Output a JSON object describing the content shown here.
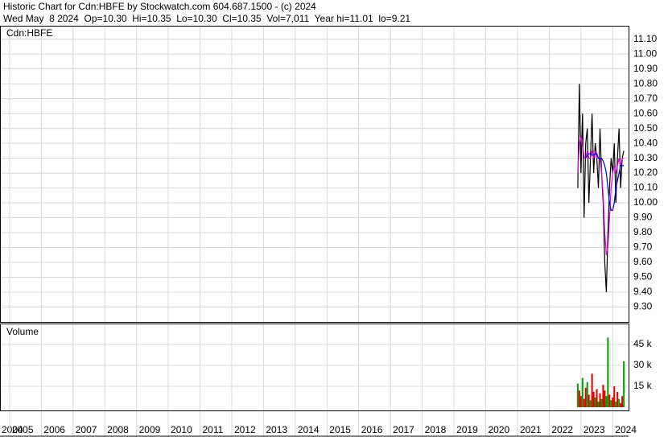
{
  "chart_data": {
    "type": "stock",
    "title": "Historic Chart for Cdn:HBFE by Stockwatch.com 604.687.1500 - (c) 2024",
    "subtitle": "Wed May  8 2024  Op=10.30  Hi=10.35  Lo=10.30  Cl=10.35  Vol=7,011  Year hi=11.01  lo=9.21",
    "symbol": "Cdn:HBFE",
    "volume_label": "Volume",
    "grid": true,
    "xlim": [
      2004.7,
      2024.5
    ],
    "xticks": [
      {
        "value": 2004,
        "label": "2004"
      },
      2005,
      2006,
      2007,
      2008,
      2009,
      2010,
      2011,
      2012,
      2013,
      2014,
      2015,
      2016,
      2017,
      2018,
      2019,
      2020,
      2021,
      2022,
      2023,
      2024
    ],
    "ylim": [
      9.2,
      11.19
    ],
    "yticks": [
      {
        "value": 11.1,
        "label": "11.10"
      },
      {
        "value": 11.0,
        "label": "11.00"
      },
      {
        "value": 10.9,
        "label": "10.90"
      },
      {
        "value": 10.8,
        "label": "10.80"
      },
      {
        "value": 10.7,
        "label": "10.70"
      },
      {
        "value": 10.6,
        "label": "10.60"
      },
      {
        "value": 10.5,
        "label": "10.50"
      },
      {
        "value": 10.4,
        "label": "10.40"
      },
      {
        "value": 10.3,
        "label": "10.30"
      },
      {
        "value": 10.2,
        "label": "10.20"
      },
      {
        "value": 10.1,
        "label": "10.10"
      },
      {
        "value": 10.0,
        "label": "10.00"
      },
      {
        "value": 9.9,
        "label": "9.90"
      },
      {
        "value": 9.8,
        "label": "9.80"
      },
      {
        "value": 9.7,
        "label": "9.70"
      },
      {
        "value": 9.6,
        "label": "9.60"
      },
      {
        "value": 9.5,
        "label": "9.50"
      },
      {
        "value": 9.4,
        "label": "9.40"
      },
      {
        "value": 9.3,
        "label": "9.30"
      }
    ],
    "x": [
      2022.9,
      2022.95,
      2023.0,
      2023.05,
      2023.1,
      2023.15,
      2023.2,
      2023.25,
      2023.3,
      2023.35,
      2023.4,
      2023.45,
      2023.5,
      2023.55,
      2023.6,
      2023.65,
      2023.7,
      2023.75,
      2023.8,
      2023.85,
      2023.9,
      2023.95,
      2024.0,
      2024.05,
      2024.1,
      2024.15,
      2024.2,
      2024.25,
      2024.3,
      2024.35
    ],
    "series": [
      {
        "color": "#000000",
        "values": [
          10.1,
          10.8,
          10.2,
          10.6,
          9.9,
          10.4,
          10.5,
          10.0,
          10.3,
          10.6,
          10.2,
          10.4,
          10.3,
          10.1,
          10.5,
          10.2,
          10.0,
          9.6,
          9.4,
          9.8,
          10.1,
          10.3,
          10.2,
          10.4,
          10.0,
          10.3,
          10.5,
          10.1,
          10.3,
          10.35
        ]
      },
      {
        "color": "#e000e0",
        "values": [
          10.2,
          10.4,
          10.45,
          10.4,
          10.3,
          10.3,
          10.35,
          10.3,
          10.3,
          10.35,
          10.3,
          10.35,
          10.3,
          10.3,
          10.3,
          10.2,
          10.05,
          9.8,
          9.65,
          9.7,
          9.9,
          10.1,
          10.2,
          10.25,
          10.2,
          10.25,
          10.3,
          10.25,
          10.3,
          10.3
        ]
      },
      {
        "color": "#0000e0",
        "values": [
          null,
          null,
          null,
          null,
          null,
          10.3,
          10.32,
          10.33,
          10.33,
          10.32,
          10.32,
          10.33,
          10.33,
          10.3,
          10.3,
          10.3,
          10.28,
          10.25,
          10.2,
          10.1,
          10.0,
          9.95,
          9.95,
          10.0,
          10.1,
          10.15,
          10.2,
          10.25,
          10.25,
          10.25
        ]
      }
    ],
    "volume": {
      "ylim": [
        0,
        60000
      ],
      "yticks": [
        {
          "value": 15000,
          "label": "15 k"
        },
        {
          "value": 30000,
          "label": "30 k"
        },
        {
          "value": 45000,
          "label": "45 k"
        }
      ],
      "values": [
        17000,
        12000,
        8000,
        21000,
        6000,
        14000,
        18000,
        9000,
        5000,
        24000,
        11000,
        7000,
        13000,
        4000,
        10000,
        6000,
        16000,
        12000,
        8000,
        50000,
        9000,
        5000,
        7000,
        15000,
        4000,
        11000,
        6000,
        3000,
        8000,
        33000
      ],
      "colors": [
        "#00a000",
        "#e00000",
        "#e00000",
        "#00a000",
        "#e00000",
        "#e00000",
        "#00a000",
        "#e00000",
        "#00a000",
        "#e00000",
        "#e00000",
        "#00a000",
        "#e00000",
        "#00a000",
        "#e00000",
        "#00a000",
        "#e00000",
        "#e00000",
        "#00a000",
        "#00a000",
        "#e00000",
        "#00a000",
        "#e00000",
        "#e00000",
        "#00a000",
        "#e00000",
        "#00a000",
        "#e00000",
        "#e00000",
        "#00a000"
      ]
    }
  }
}
